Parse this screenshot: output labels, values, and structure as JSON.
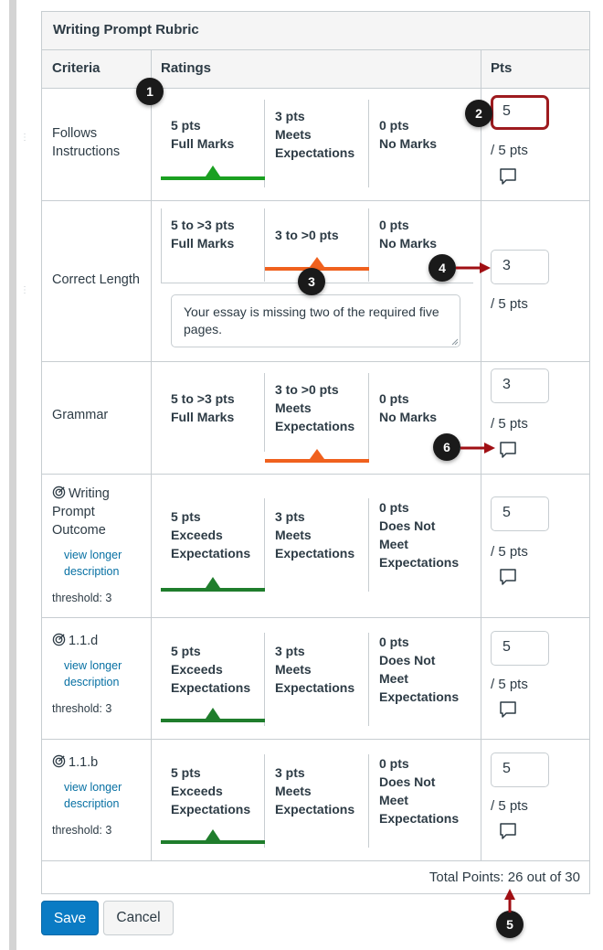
{
  "rubric": {
    "title": "Writing Prompt Rubric",
    "headers": {
      "criteria": "Criteria",
      "ratings": "Ratings",
      "pts": "Pts"
    },
    "rows": [
      {
        "criterion": "Follows Instructions",
        "ratings": [
          {
            "line1": "5 pts",
            "line2": "Full Marks"
          },
          {
            "line1": "3 pts",
            "line2": "Meets",
            "line3": "Expectations"
          },
          {
            "line1": "0 pts",
            "line2": "No Marks"
          }
        ],
        "points_value": "5",
        "out_of": "/ 5 pts"
      },
      {
        "criterion": "Correct Length",
        "ratings": [
          {
            "line1": "5 to >3 pts",
            "line2": "Full Marks"
          },
          {
            "line1": "3 to >0 pts"
          },
          {
            "line1": "0 pts",
            "line2": "No Marks"
          }
        ],
        "comment": "Your essay is missing two of the required five pages.",
        "points_value": "3",
        "out_of": "/ 5 pts"
      },
      {
        "criterion": "Grammar",
        "ratings": [
          {
            "line1": "5 to >3 pts",
            "line2": "Full Marks"
          },
          {
            "line1": "3 to >0 pts",
            "line2": "Meets",
            "line3": "Expectations"
          },
          {
            "line1": "0 pts",
            "line2": "No Marks"
          }
        ],
        "points_value": "3",
        "out_of": "/ 5 pts"
      },
      {
        "criterion_line1": "Writing",
        "criterion_line2": "Prompt",
        "criterion_line3": "Outcome",
        "link_line1": "view longer",
        "link_line2": "description",
        "threshold": "threshold: 3",
        "ratings": [
          {
            "line1": "5 pts",
            "line2": "Exceeds",
            "line3": "Expectations"
          },
          {
            "line1": "3 pts",
            "line2": "Meets",
            "line3": "Expectations"
          },
          {
            "line1": "0 pts",
            "line2": "Does Not",
            "line3": "Meet",
            "line4": "Expectations"
          }
        ],
        "points_value": "5",
        "out_of": "/ 5 pts"
      },
      {
        "criterion_line1": "1.1.d",
        "link_line1": "view longer",
        "link_line2": "description",
        "threshold": "threshold: 3",
        "ratings": [
          {
            "line1": "5 pts",
            "line2": "Exceeds",
            "line3": "Expectations"
          },
          {
            "line1": "3 pts",
            "line2": "Meets",
            "line3": "Expectations"
          },
          {
            "line1": "0 pts",
            "line2": "Does Not",
            "line3": "Meet",
            "line4": "Expectations"
          }
        ],
        "points_value": "5",
        "out_of": "/ 5 pts"
      },
      {
        "criterion_line1": "1.1.b",
        "link_line1": "view longer",
        "link_line2": "description",
        "threshold": "threshold: 3",
        "ratings": [
          {
            "line1": "5 pts",
            "line2": "Exceeds",
            "line3": "Expectations"
          },
          {
            "line1": "3 pts",
            "line2": "Meets",
            "line3": "Expectations"
          },
          {
            "line1": "0 pts",
            "line2": "Does Not",
            "line3": "Meet",
            "line4": "Expectations"
          }
        ],
        "points_value": "5",
        "out_of": "/ 5 pts"
      }
    ],
    "total": "Total Points: 26 out of 30"
  },
  "buttons": {
    "save": "Save",
    "cancel": "Cancel"
  },
  "callouts": [
    "1",
    "2",
    "3",
    "4",
    "5",
    "6"
  ],
  "colors": {
    "full_marks_green": "#1aa021",
    "outcome_green": "#1f7d2c",
    "partial_orange": "#f0611e",
    "annotation_red": "#a00f14",
    "save_blue": "#0a7bc4",
    "link_blue": "#0770a3"
  },
  "icons": [
    "outcome-target-icon",
    "comment-icon",
    "drag-grip-icon"
  ]
}
